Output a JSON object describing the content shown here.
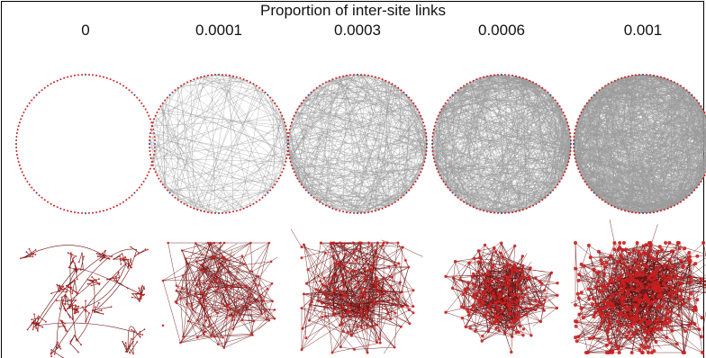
{
  "figure": {
    "title": "Proportion of inter-site links",
    "columns": [
      "0",
      "0.0001",
      "0.0003",
      "0.0006",
      "0.001"
    ],
    "rows": [
      "circular-layout",
      "force-directed-layout"
    ],
    "colors": {
      "edge_circle": "#9a9a9a",
      "edge_force": "#6b0f0f",
      "node_red": "#cc1f1f",
      "node_blue": "#1f3f9a",
      "frame": "#000000"
    },
    "densities": [
      0,
      0.0001,
      0.0003,
      0.0006,
      0.001
    ]
  }
}
